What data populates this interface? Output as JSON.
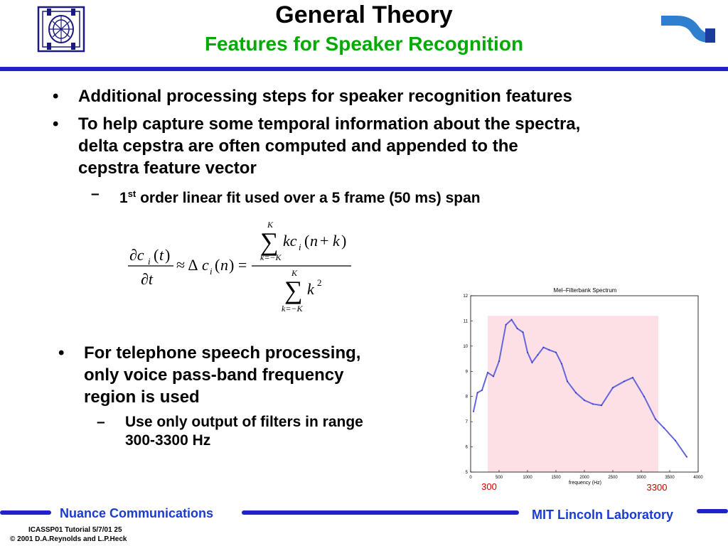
{
  "header": {
    "title": "General Theory",
    "subtitle": "Features for Speaker Recognition"
  },
  "bullets": [
    {
      "text": "Additional processing steps for speaker recognition features"
    },
    {
      "lines": [
        "To help capture some temporal information about the spectra,",
        "delta cepstra are often computed and appended to the",
        "cepstra feature vector"
      ]
    }
  ],
  "sub_bullet_1": {
    "pre": "1",
    "sup": "st",
    "post": " order linear fit used over a 5 frame (50 ms) span"
  },
  "bullets_lower": {
    "lines": [
      "For telephone speech processing,",
      "only voice pass-band frequency",
      "region is used"
    ],
    "sub_lines": [
      "Use only output of filters in range",
      "300-3300 Hz"
    ]
  },
  "chart_data": {
    "type": "line",
    "title": "Mel–Filterbank Spectrum",
    "xlabel": "frequency (Hz)",
    "ylabel": "",
    "xlim": [
      0,
      4000
    ],
    "ylim": [
      5,
      12
    ],
    "xticks": [
      0,
      500,
      1000,
      1500,
      2000,
      2500,
      3000,
      3500,
      4000
    ],
    "yticks": [
      5,
      6,
      7,
      8,
      9,
      10,
      11,
      12
    ],
    "band": [
      300,
      3300
    ],
    "band_labels": [
      "300",
      "3300"
    ],
    "series_color": "#6666dd",
    "band_color": "#fde0e6",
    "x": [
      50,
      120,
      200,
      300,
      400,
      500,
      620,
      720,
      820,
      920,
      1000,
      1080,
      1180,
      1280,
      1380,
      1500,
      1600,
      1700,
      1850,
      2000,
      2150,
      2300,
      2500,
      2700,
      2850,
      3050,
      3250,
      3400,
      3600,
      3800
    ],
    "y": [
      7.4,
      8.15,
      8.25,
      8.95,
      8.8,
      9.4,
      10.85,
      11.05,
      10.7,
      10.55,
      9.75,
      9.35,
      9.65,
      9.95,
      9.85,
      9.75,
      9.3,
      8.6,
      8.15,
      7.85,
      7.7,
      7.65,
      8.35,
      8.6,
      8.75,
      8.0,
      7.1,
      6.75,
      6.25,
      5.6
    ]
  },
  "footer": {
    "left": "Nuance Communications",
    "right": "MIT Lincoln Laboratory",
    "credit_line1": "ICASSP01 Tutorial  5/7/01 25",
    "credit_line2": "© 2001 D.A.Reynolds and L.P.Heck"
  },
  "colors": {
    "accent_blue": "#2222cc",
    "subtitle_green": "#00aa00",
    "footer_text": "#1a3ccc",
    "band_label_red": "#cc0000"
  }
}
